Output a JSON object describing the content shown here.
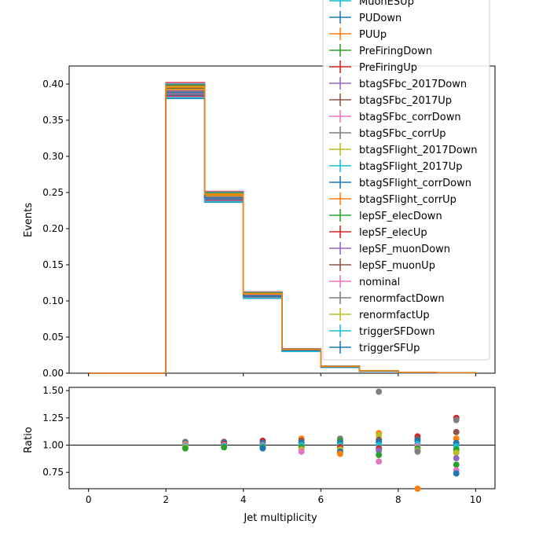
{
  "chart_data": [
    {
      "type": "line",
      "style": "step histogram",
      "title": "",
      "xlabel": "",
      "ylabel": "Events",
      "xlim": [
        -0.5,
        10.5
      ],
      "ylim": [
        0,
        0.425
      ],
      "xticks": [
        "0",
        "2",
        "4",
        "6",
        "8",
        "10"
      ],
      "yticks": [
        "0.00",
        "0.05",
        "0.10",
        "0.15",
        "0.20",
        "0.25",
        "0.30",
        "0.35",
        "0.40"
      ],
      "bin_edges": [
        0,
        1,
        2,
        3,
        4,
        5,
        6,
        7,
        8,
        9,
        10
      ],
      "nominal_values": [
        0,
        0,
        0.391,
        0.244,
        0.108,
        0.032,
        0.009,
        0.003,
        0.001,
        0.0005
      ],
      "legend": {
        "placement": "upper-right",
        "entries": [
          {
            "name": "MuonESUp",
            "color": "#17becf"
          },
          {
            "name": "PUDown",
            "color": "#1f77b4"
          },
          {
            "name": "PUUp",
            "color": "#ff7f0e"
          },
          {
            "name": "PreFiringDown",
            "color": "#2ca02c"
          },
          {
            "name": "PreFiringUp",
            "color": "#d62728"
          },
          {
            "name": "btagSFbc_2017Down",
            "color": "#9467bd"
          },
          {
            "name": "btagSFbc_2017Up",
            "color": "#8c564b"
          },
          {
            "name": "btagSFbc_corrDown",
            "color": "#e377c2"
          },
          {
            "name": "btagSFbc_corrUp",
            "color": "#7f7f7f"
          },
          {
            "name": "btagSFlight_2017Down",
            "color": "#bcbd22"
          },
          {
            "name": "btagSFlight_2017Up",
            "color": "#17becf"
          },
          {
            "name": "btagSFlight_corrDown",
            "color": "#1f77b4"
          },
          {
            "name": "btagSFlight_corrUp",
            "color": "#ff7f0e"
          },
          {
            "name": "lepSF_elecDown",
            "color": "#2ca02c"
          },
          {
            "name": "lepSF_elecUp",
            "color": "#d62728"
          },
          {
            "name": "lepSF_muonDown",
            "color": "#9467bd"
          },
          {
            "name": "lepSF_muonUp",
            "color": "#8c564b"
          },
          {
            "name": "nominal",
            "color": "#e377c2"
          },
          {
            "name": "renormfactDown",
            "color": "#7f7f7f"
          },
          {
            "name": "renormfactUp",
            "color": "#bcbd22"
          },
          {
            "name": "triggerSFDown",
            "color": "#17becf"
          },
          {
            "name": "triggerSFUp",
            "color": "#1f77b4"
          }
        ]
      },
      "series_colors": [
        "#1f77b4",
        "#ff7f0e",
        "#2ca02c",
        "#d62728",
        "#9467bd",
        "#8c564b",
        "#e377c2",
        "#7f7f7f",
        "#bcbd22",
        "#17becf"
      ],
      "variation_spread": [
        0,
        0,
        0.022,
        0.015,
        0.009,
        0.004,
        0.002,
        0.001,
        0.0008,
        0.0004
      ]
    },
    {
      "type": "scatter",
      "title": "",
      "xlabel": "Jet multiplicity",
      "ylabel": "Ratio",
      "xlim": [
        -0.5,
        10.5
      ],
      "ylim": [
        0.6,
        1.53
      ],
      "xticks": [
        "0",
        "2",
        "4",
        "6",
        "8",
        "10"
      ],
      "yticks": [
        "0.75",
        "1.00",
        "1.25",
        "1.50"
      ],
      "reference_line": 1.0,
      "points": [
        {
          "x": 2.5,
          "y": 1.03,
          "color": "#7f7f7f"
        },
        {
          "x": 2.5,
          "y": 1.02,
          "color": "#1f77b4"
        },
        {
          "x": 2.5,
          "y": 1.01,
          "color": "#ff7f0e"
        },
        {
          "x": 2.5,
          "y": 1.0,
          "color": "#e377c2"
        },
        {
          "x": 2.5,
          "y": 0.99,
          "color": "#17becf"
        },
        {
          "x": 2.5,
          "y": 0.98,
          "color": "#bcbd22"
        },
        {
          "x": 2.5,
          "y": 0.97,
          "color": "#2ca02c"
        },
        {
          "x": 3.5,
          "y": 1.03,
          "color": "#8c564b"
        },
        {
          "x": 3.5,
          "y": 1.02,
          "color": "#1f77b4"
        },
        {
          "x": 3.5,
          "y": 1.01,
          "color": "#d62728"
        },
        {
          "x": 3.5,
          "y": 1.0,
          "color": "#e377c2"
        },
        {
          "x": 3.5,
          "y": 0.99,
          "color": "#17becf"
        },
        {
          "x": 3.5,
          "y": 0.98,
          "color": "#2ca02c"
        },
        {
          "x": 4.5,
          "y": 1.04,
          "color": "#d62728"
        },
        {
          "x": 4.5,
          "y": 1.02,
          "color": "#1f77b4"
        },
        {
          "x": 4.5,
          "y": 1.0,
          "color": "#e377c2"
        },
        {
          "x": 4.5,
          "y": 0.99,
          "color": "#17becf"
        },
        {
          "x": 4.5,
          "y": 0.98,
          "color": "#2ca02c"
        },
        {
          "x": 4.5,
          "y": 0.97,
          "color": "#1f77b4"
        },
        {
          "x": 5.5,
          "y": 1.06,
          "color": "#ff7f0e"
        },
        {
          "x": 5.5,
          "y": 1.04,
          "color": "#8c564b"
        },
        {
          "x": 5.5,
          "y": 1.02,
          "color": "#1f77b4"
        },
        {
          "x": 5.5,
          "y": 1.0,
          "color": "#17becf"
        },
        {
          "x": 5.5,
          "y": 0.98,
          "color": "#2ca02c"
        },
        {
          "x": 5.5,
          "y": 0.96,
          "color": "#bcbd22"
        },
        {
          "x": 5.5,
          "y": 0.94,
          "color": "#e377c2"
        },
        {
          "x": 6.5,
          "y": 1.06,
          "color": "#7f7f7f"
        },
        {
          "x": 6.5,
          "y": 1.04,
          "color": "#2ca02c"
        },
        {
          "x": 6.5,
          "y": 1.02,
          "color": "#1f77b4"
        },
        {
          "x": 6.5,
          "y": 1.0,
          "color": "#17becf"
        },
        {
          "x": 6.5,
          "y": 0.98,
          "color": "#d62728"
        },
        {
          "x": 6.5,
          "y": 0.96,
          "color": "#bcbd22"
        },
        {
          "x": 6.5,
          "y": 0.94,
          "color": "#1f77b4"
        },
        {
          "x": 6.5,
          "y": 0.92,
          "color": "#ff7f0e"
        },
        {
          "x": 7.5,
          "y": 1.49,
          "color": "#7f7f7f"
        },
        {
          "x": 7.5,
          "y": 1.11,
          "color": "#ff7f0e"
        },
        {
          "x": 7.5,
          "y": 1.09,
          "color": "#bcbd22"
        },
        {
          "x": 7.5,
          "y": 1.05,
          "color": "#8c564b"
        },
        {
          "x": 7.5,
          "y": 1.03,
          "color": "#1f77b4"
        },
        {
          "x": 7.5,
          "y": 1.0,
          "color": "#17becf"
        },
        {
          "x": 7.5,
          "y": 0.97,
          "color": "#d62728"
        },
        {
          "x": 7.5,
          "y": 0.95,
          "color": "#9467bd"
        },
        {
          "x": 7.5,
          "y": 0.91,
          "color": "#2ca02c"
        },
        {
          "x": 7.5,
          "y": 0.85,
          "color": "#e377c2"
        },
        {
          "x": 8.5,
          "y": 1.08,
          "color": "#d62728"
        },
        {
          "x": 8.5,
          "y": 1.06,
          "color": "#8c564b"
        },
        {
          "x": 8.5,
          "y": 1.04,
          "color": "#1f77b4"
        },
        {
          "x": 8.5,
          "y": 1.01,
          "color": "#17becf"
        },
        {
          "x": 8.5,
          "y": 0.99,
          "color": "#e377c2"
        },
        {
          "x": 8.5,
          "y": 0.97,
          "color": "#2ca02c"
        },
        {
          "x": 8.5,
          "y": 0.95,
          "color": "#bcbd22"
        },
        {
          "x": 8.5,
          "y": 0.94,
          "color": "#7f7f7f"
        },
        {
          "x": 8.5,
          "y": 0.6,
          "color": "#ff7f0e"
        },
        {
          "x": 9.5,
          "y": 1.25,
          "color": "#d62728"
        },
        {
          "x": 9.5,
          "y": 1.23,
          "color": "#7f7f7f"
        },
        {
          "x": 9.5,
          "y": 1.12,
          "color": "#8c564b"
        },
        {
          "x": 9.5,
          "y": 1.06,
          "color": "#ff7f0e"
        },
        {
          "x": 9.5,
          "y": 1.02,
          "color": "#1f77b4"
        },
        {
          "x": 9.5,
          "y": 0.99,
          "color": "#17becf"
        },
        {
          "x": 9.5,
          "y": 0.96,
          "color": "#2ca02c"
        },
        {
          "x": 9.5,
          "y": 0.93,
          "color": "#bcbd22"
        },
        {
          "x": 9.5,
          "y": 0.88,
          "color": "#9467bd"
        },
        {
          "x": 9.5,
          "y": 0.82,
          "color": "#2ca02c"
        },
        {
          "x": 9.5,
          "y": 0.77,
          "color": "#e377c2"
        },
        {
          "x": 9.5,
          "y": 0.74,
          "color": "#1f77b4"
        }
      ]
    }
  ]
}
